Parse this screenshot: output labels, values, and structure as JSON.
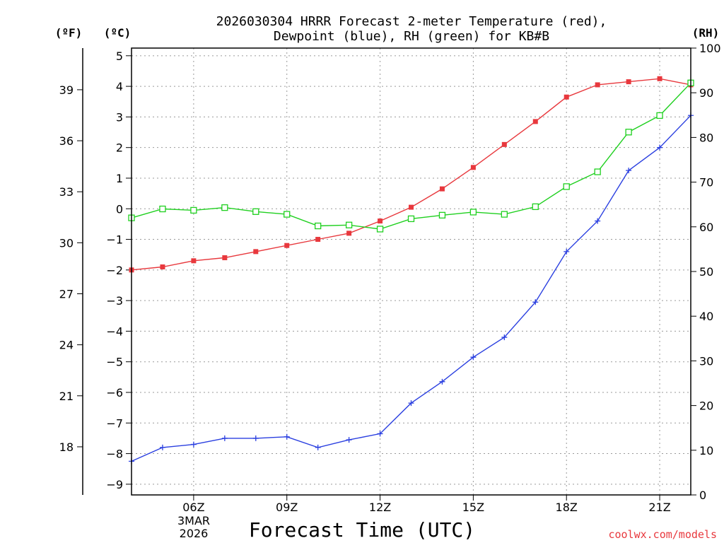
{
  "chart_data": {
    "type": "line",
    "title_line1": "2026030304 HRRR Forecast 2-meter Temperature (red),",
    "title_line2": "Dewpoint (blue), RH (green) for KB#B",
    "left_unit_f": "(ºF)",
    "left_unit_c": "(ºC)",
    "right_unit": "(RH)",
    "xlabel": "Forecast Time (UTC)",
    "date_line1": "3MAR",
    "date_line2": "2026",
    "credit": "coolwx.com/models",
    "x_range": [
      4,
      22
    ],
    "celsius_axis": {
      "range": [
        -9.35,
        5.25
      ],
      "ticks": [
        5,
        4,
        3,
        2,
        1,
        0,
        -1,
        -2,
        -3,
        -4,
        -5,
        -6,
        -7,
        -8,
        -9
      ]
    },
    "fahrenheit_axis": {
      "ticks": [
        39,
        36,
        33,
        30,
        27,
        24,
        21,
        18
      ]
    },
    "rh_axis": {
      "range": [
        0,
        100
      ],
      "ticks": [
        100,
        90,
        80,
        70,
        60,
        50,
        40,
        30,
        20,
        10,
        0
      ]
    },
    "x_ticks": [
      {
        "hour": 6,
        "label": "06Z"
      },
      {
        "hour": 9,
        "label": "09Z"
      },
      {
        "hour": 12,
        "label": "12Z"
      },
      {
        "hour": 15,
        "label": "15Z"
      },
      {
        "hour": 18,
        "label": "18Z"
      },
      {
        "hour": 21,
        "label": "21Z"
      }
    ],
    "grid": true,
    "colors": {
      "temperature": "#e8383d",
      "dewpoint": "#2a3fe0",
      "rh": "#1fd01f",
      "grid": "#9a9a9a",
      "credit": "#e8383d"
    },
    "series": [
      {
        "name": "Temperature",
        "unit": "C",
        "marker": "filled-square",
        "x": [
          4,
          5,
          6,
          7,
          8,
          9,
          10,
          11,
          12,
          13,
          14,
          15,
          16,
          17,
          18,
          19,
          20,
          21,
          22
        ],
        "values": [
          -2.0,
          -1.9,
          -1.7,
          -1.6,
          -1.4,
          -1.2,
          -1.0,
          -0.8,
          -0.4,
          0.05,
          0.65,
          1.35,
          2.1,
          2.85,
          3.65,
          4.05,
          4.15,
          4.25,
          4.05
        ]
      },
      {
        "name": "Dewpoint",
        "unit": "C",
        "marker": "plus",
        "x": [
          4,
          5,
          6,
          7,
          8,
          9,
          10,
          11,
          12,
          13,
          14,
          15,
          16,
          17,
          18,
          19,
          20,
          21,
          22
        ],
        "values": [
          -8.25,
          -7.8,
          -7.7,
          -7.5,
          -7.5,
          -7.45,
          -7.8,
          -7.55,
          -7.35,
          -6.35,
          -5.65,
          -4.85,
          -4.2,
          -3.05,
          -1.4,
          -0.4,
          1.25,
          2.0,
          3.05
        ]
      },
      {
        "name": "RH",
        "unit": "%",
        "marker": "open-square",
        "x": [
          4,
          5,
          6,
          7,
          8,
          9,
          10,
          11,
          12,
          13,
          14,
          15,
          16,
          17,
          18,
          19,
          20,
          21,
          22
        ],
        "values": [
          62,
          64,
          63.7,
          64.3,
          63.4,
          62.8,
          60.2,
          60.4,
          59.5,
          61.8,
          62.6,
          63.3,
          62.8,
          64.5,
          69,
          72.3,
          81.2,
          84.9,
          92.2
        ]
      }
    ]
  }
}
